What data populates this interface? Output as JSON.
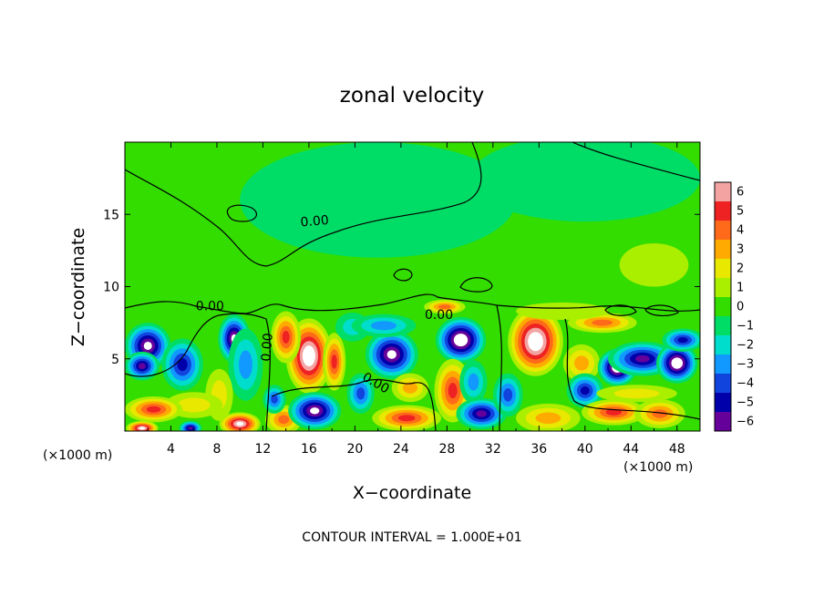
{
  "chart_data": {
    "type": "heatmap",
    "title": "zonal velocity",
    "xlabel": "X−coordinate",
    "ylabel": "Z−coordinate",
    "x_unit_left": "(×1000 m)",
    "x_unit_right": "(×1000 m)",
    "x_ticks": [
      4,
      8,
      12,
      16,
      20,
      24,
      28,
      32,
      36,
      40,
      44,
      48
    ],
    "y_ticks": [
      5,
      10,
      15
    ],
    "xlim": [
      0,
      50
    ],
    "ylim": [
      0,
      20
    ],
    "footer": "CONTOUR INTERVAL = 1.000E+01",
    "colorbar": {
      "levels": [
        "6",
        "5",
        "4",
        "3",
        "2",
        "1",
        "0",
        "−1",
        "−2",
        "−3",
        "−4",
        "−5",
        "−6"
      ],
      "colors": [
        "#f4a3a3",
        "#ee2222",
        "#ff6a1a",
        "#ffaa00",
        "#e8e800",
        "#aaee00",
        "#33dd00",
        "#00dd66",
        "#00ddcc",
        "#1199ff",
        "#1144dd",
        "#0000aa",
        "#66009a"
      ]
    },
    "contour_labels": [
      {
        "text": "0.00",
        "x": 16.5,
        "z": 14.5,
        "angle": -5
      },
      {
        "text": "0.00",
        "x": 7.4,
        "z": 8.6,
        "angle": 0
      },
      {
        "text": "0.00",
        "x": 27.3,
        "z": 8.0,
        "angle": 0
      },
      {
        "text": "0.00",
        "x": 12.4,
        "z": 5.8,
        "angle": -85
      },
      {
        "text": "0.00",
        "x": 21.8,
        "z": 3.3,
        "angle": 30
      }
    ],
    "field_blobs": [
      {
        "x": 2.0,
        "z": 5.9,
        "rx": 2.0,
        "rz": 1.6,
        "v": -7
      },
      {
        "x": 1.5,
        "z": 4.5,
        "rx": 1.5,
        "rz": 1.0,
        "v": -6
      },
      {
        "x": 5.0,
        "z": 4.6,
        "rx": 1.8,
        "rz": 1.8,
        "v": -5
      },
      {
        "x": 9.5,
        "z": 6.4,
        "rx": 1.4,
        "rz": 1.7,
        "v": -7
      },
      {
        "x": 10.5,
        "z": 4.6,
        "rx": 1.5,
        "rz": 2.5,
        "v": -3
      },
      {
        "x": 8.2,
        "z": 2.5,
        "rx": 1.2,
        "rz": 1.8,
        "v": 2
      },
      {
        "x": 6.0,
        "z": 1.8,
        "rx": 2.5,
        "rz": 0.9,
        "v": 2
      },
      {
        "x": 2.5,
        "z": 1.5,
        "rx": 2.5,
        "rz": 0.9,
        "v": 5
      },
      {
        "x": 1.5,
        "z": 0.2,
        "rx": 1.4,
        "rz": 0.5,
        "v": 7
      },
      {
        "x": 5.7,
        "z": 0.2,
        "rx": 1.0,
        "rz": 0.5,
        "v": -6
      },
      {
        "x": 10.0,
        "z": 0.5,
        "rx": 1.8,
        "rz": 0.8,
        "v": 7
      },
      {
        "x": 13.8,
        "z": 0.8,
        "rx": 1.6,
        "rz": 1.0,
        "v": 4
      },
      {
        "x": 16.0,
        "z": 5.2,
        "rx": 2.0,
        "rz": 2.6,
        "v": 8
      },
      {
        "x": 14.0,
        "z": 6.5,
        "rx": 1.3,
        "rz": 1.8,
        "v": 5
      },
      {
        "x": 18.2,
        "z": 4.8,
        "rx": 1.0,
        "rz": 2.0,
        "v": 5
      },
      {
        "x": 16.5,
        "z": 1.4,
        "rx": 2.3,
        "rz": 1.3,
        "v": -7
      },
      {
        "x": 13.0,
        "z": 2.2,
        "rx": 1.0,
        "rz": 1.0,
        "v": -4
      },
      {
        "x": 19.8,
        "z": 7.2,
        "rx": 1.5,
        "rz": 1.0,
        "v": -2
      },
      {
        "x": 20.5,
        "z": 2.6,
        "rx": 1.2,
        "rz": 1.4,
        "v": -4
      },
      {
        "x": 23.2,
        "z": 5.3,
        "rx": 2.3,
        "rz": 1.7,
        "v": -7
      },
      {
        "x": 22.5,
        "z": 7.3,
        "rx": 2.8,
        "rz": 0.8,
        "v": -3
      },
      {
        "x": 24.8,
        "z": 3.0,
        "rx": 1.6,
        "rz": 1.0,
        "v": 3
      },
      {
        "x": 24.5,
        "z": 0.9,
        "rx": 3.0,
        "rz": 0.9,
        "v": 5
      },
      {
        "x": 29.2,
        "z": 6.3,
        "rx": 2.2,
        "rz": 1.6,
        "v": -8
      },
      {
        "x": 27.8,
        "z": 8.6,
        "rx": 1.8,
        "rz": 0.5,
        "v": 4
      },
      {
        "x": 28.5,
        "z": 2.8,
        "rx": 1.6,
        "rz": 2.2,
        "v": 5
      },
      {
        "x": 30.3,
        "z": 3.4,
        "rx": 1.2,
        "rz": 1.5,
        "v": -3
      },
      {
        "x": 31.0,
        "z": 1.2,
        "rx": 2.2,
        "rz": 1.1,
        "v": -6
      },
      {
        "x": 35.7,
        "z": 6.2,
        "rx": 2.4,
        "rz": 2.4,
        "v": 8
      },
      {
        "x": 33.3,
        "z": 2.5,
        "rx": 1.3,
        "rz": 1.5,
        "v": -4
      },
      {
        "x": 36.8,
        "z": 0.9,
        "rx": 2.8,
        "rz": 1.0,
        "v": 3
      },
      {
        "x": 39.7,
        "z": 4.7,
        "rx": 1.6,
        "rz": 1.3,
        "v": 3
      },
      {
        "x": 41.5,
        "z": 7.5,
        "rx": 3.0,
        "rz": 0.7,
        "v": 4
      },
      {
        "x": 42.8,
        "z": 4.4,
        "rx": 1.7,
        "rz": 1.3,
        "v": -8
      },
      {
        "x": 40.0,
        "z": 2.8,
        "rx": 1.6,
        "rz": 1.2,
        "v": -5
      },
      {
        "x": 45.0,
        "z": 5.0,
        "rx": 3.0,
        "rz": 1.2,
        "v": -6
      },
      {
        "x": 48.0,
        "z": 4.7,
        "rx": 1.8,
        "rz": 1.4,
        "v": -8
      },
      {
        "x": 48.5,
        "z": 6.3,
        "rx": 1.8,
        "rz": 0.8,
        "v": -5
      },
      {
        "x": 42.5,
        "z": 1.3,
        "rx": 2.8,
        "rz": 0.9,
        "v": 5
      },
      {
        "x": 46.5,
        "z": 1.2,
        "rx": 2.2,
        "rz": 1.0,
        "v": 4
      },
      {
        "x": 44.5,
        "z": 2.6,
        "rx": 3.5,
        "rz": 0.6,
        "v": 2
      },
      {
        "x": 38.0,
        "z": 8.3,
        "rx": 4.0,
        "rz": 0.6,
        "v": 0.6
      },
      {
        "x": 46.0,
        "z": 11.5,
        "rx": 3.0,
        "rz": 1.5,
        "v": 1.2
      },
      {
        "x": 22.0,
        "z": 16.0,
        "rx": 12.0,
        "rz": 4.0,
        "v": -0.7
      },
      {
        "x": 40.0,
        "z": 17.5,
        "rx": 10.0,
        "rz": 3.0,
        "v": -0.5
      }
    ]
  }
}
